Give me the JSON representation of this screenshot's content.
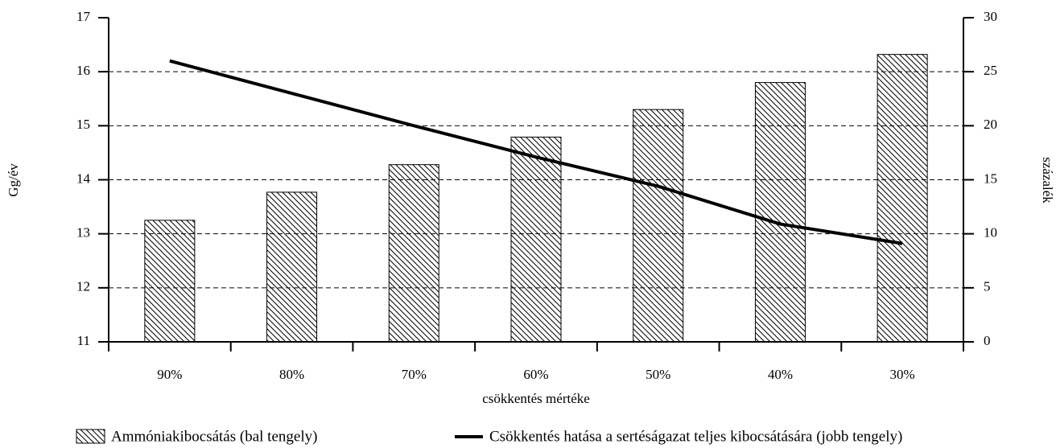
{
  "chart_data": {
    "type": "bar_line",
    "categories": [
      "90%",
      "80%",
      "70%",
      "60%",
      "50%",
      "40%",
      "30%"
    ],
    "series": [
      {
        "name": "Ammóniakibocsátás (bal tengely)",
        "color": "#000000",
        "type": "bar",
        "values": [
          13.25,
          13.77,
          14.28,
          14.79,
          15.3,
          15.8,
          16.32
        ]
      },
      {
        "name": "Csökkentés hatása a sertéságazat teljes kibocsátására (jobb tengely)",
        "color": "#000000",
        "type": "line",
        "axis": "y2",
        "values": [
          26.0,
          23.0,
          20.0,
          17.1,
          14.4,
          10.9,
          9.1
        ]
      }
    ],
    "xlabel": "csökkentés mértéke",
    "ylabel": "Gg/év",
    "y2label": "százalék",
    "ylim": [
      11,
      17
    ],
    "yticks": [
      11,
      12,
      13,
      14,
      15,
      16,
      17
    ],
    "y2lim": [
      0,
      30
    ],
    "y2ticks": [
      0,
      5,
      10,
      15,
      20,
      25,
      30
    ],
    "grid": true,
    "legend": "bottom"
  }
}
